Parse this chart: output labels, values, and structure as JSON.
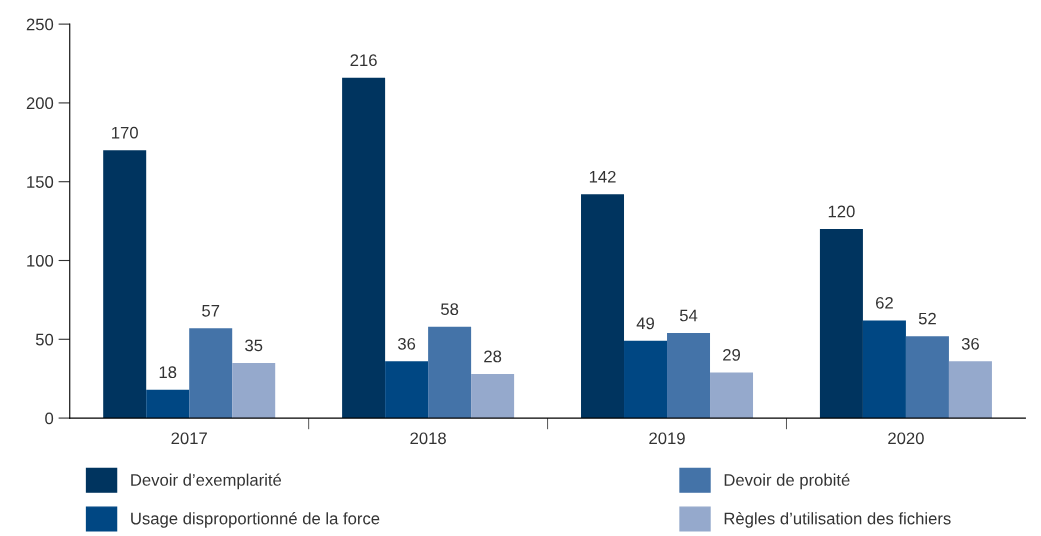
{
  "chart_data": {
    "type": "bar",
    "categories": [
      "2017",
      "2018",
      "2019",
      "2020"
    ],
    "series": [
      {
        "name": "Devoir d’exemplarité",
        "color": "#00345f",
        "values": [
          170,
          216,
          142,
          120
        ]
      },
      {
        "name": "Usage disproportionné de la force",
        "color": "#004783",
        "values": [
          18,
          36,
          49,
          62
        ]
      },
      {
        "name": "Devoir de probité",
        "color": "#4473a8",
        "values": [
          57,
          58,
          54,
          52
        ]
      },
      {
        "name": "Règles d’utilisation des fichiers",
        "color": "#95a9cc",
        "values": [
          35,
          28,
          29,
          36
        ]
      }
    ],
    "ylim": [
      0,
      250
    ],
    "yticks": [
      0,
      50,
      100,
      150,
      200,
      250
    ],
    "data_labels": true,
    "legend": "bottom",
    "grid": false
  }
}
